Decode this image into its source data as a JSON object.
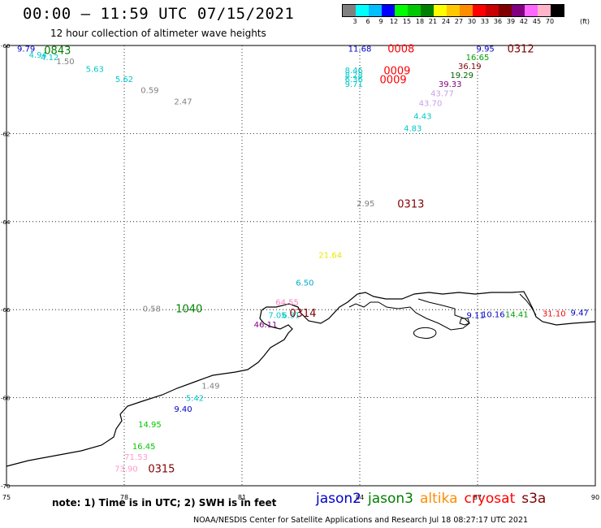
{
  "header": {
    "title": "00:00 – 11:59 UTC 07/15/2021",
    "subtitle": "12 hour collection of altimeter wave heights"
  },
  "colorbar": {
    "unit": "(ft)",
    "labels": [
      "3",
      "6",
      "9",
      "12",
      "15",
      "18",
      "21",
      "24",
      "27",
      "30",
      "33",
      "36",
      "39",
      "42",
      "45",
      "70"
    ],
    "colors": [
      "#808080",
      "#00ffff",
      "#00bfff",
      "#0000ff",
      "#00ff00",
      "#00c800",
      "#008000",
      "#ffff00",
      "#ffc800",
      "#ff8c00",
      "#ff0000",
      "#c80000",
      "#800000",
      "#800080",
      "#ff66ff",
      "#ffb4c8",
      "#000000"
    ]
  },
  "axes": {
    "lon_ticks": [
      "75",
      "78",
      "81",
      "84",
      "87",
      "90"
    ],
    "lat_ticks": [
      "-60",
      "-62",
      "-64",
      "-66",
      "-68",
      "-70"
    ]
  },
  "observations": [
    {
      "text": "9.79",
      "lon": 75.5,
      "lat": -60.06,
      "color": "#0000c8"
    },
    {
      "text": "4.94",
      "lon": 75.8,
      "lat": -60.2,
      "color": "#00c8c8"
    },
    {
      "text": "4.12",
      "lon": 76.1,
      "lat": -60.26,
      "color": "#00c8c8"
    },
    {
      "text": "1.50",
      "lon": 76.5,
      "lat": -60.35,
      "color": "#808080"
    },
    {
      "text": "5.63",
      "lon": 77.25,
      "lat": -60.53,
      "color": "#00c8c8"
    },
    {
      "text": "5.62",
      "lon": 78.0,
      "lat": -60.76,
      "color": "#00c8c8"
    },
    {
      "text": "0.59",
      "lon": 78.65,
      "lat": -61.01,
      "color": "#808080"
    },
    {
      "text": "2.47",
      "lon": 79.5,
      "lat": -61.26,
      "color": "#808080"
    },
    {
      "text": "11.68",
      "lon": 84.0,
      "lat": -60.06,
      "color": "#0000c8"
    },
    {
      "text": "8.46",
      "lon": 83.85,
      "lat": -60.55,
      "color": "#00c8c8"
    },
    {
      "text": "8.28",
      "lon": 83.85,
      "lat": -60.66,
      "color": "#00c8c8"
    },
    {
      "text": "6.36",
      "lon": 83.85,
      "lat": -60.76,
      "color": "#00c8c8"
    },
    {
      "text": "9.71",
      "lon": 83.85,
      "lat": -60.87,
      "color": "#00c8c8"
    },
    {
      "text": "9.95",
      "lon": 87.2,
      "lat": -60.06,
      "color": "#0000c8"
    },
    {
      "text": "16.65",
      "lon": 87.0,
      "lat": -60.26,
      "color": "#00a000"
    },
    {
      "text": "36.19",
      "lon": 86.8,
      "lat": -60.46,
      "color": "#800000"
    },
    {
      "text": "19.29",
      "lon": 86.6,
      "lat": -60.66,
      "color": "#006400"
    },
    {
      "text": "39.33",
      "lon": 86.3,
      "lat": -60.87,
      "color": "#800080"
    },
    {
      "text": "43.77",
      "lon": 86.1,
      "lat": -61.08,
      "color": "#c8a0e8"
    },
    {
      "text": "43.70",
      "lon": 85.8,
      "lat": -61.3,
      "color": "#c8a0e8"
    },
    {
      "text": "4.43",
      "lon": 85.6,
      "lat": -61.6,
      "color": "#00c8c8"
    },
    {
      "text": "4.83",
      "lon": 85.35,
      "lat": -61.87,
      "color": "#00c8c8"
    },
    {
      "text": "2.95",
      "lon": 84.15,
      "lat": -63.58,
      "color": "#808080"
    },
    {
      "text": "21.64",
      "lon": 83.25,
      "lat": -64.75,
      "color": "#e8e800"
    },
    {
      "text": "6.50",
      "lon": 82.6,
      "lat": -65.38,
      "color": "#00aacc"
    },
    {
      "text": "64.55",
      "lon": 82.15,
      "lat": -65.82,
      "color": "#ff80c0"
    },
    {
      "text": "7.05",
      "lon": 81.9,
      "lat": -66.12,
      "color": "#00c8c8"
    },
    {
      "text": "6.31",
      "lon": 82.25,
      "lat": -66.12,
      "color": "#00c8c8"
    },
    {
      "text": "46.11",
      "lon": 81.6,
      "lat": -66.33,
      "color": "#800080"
    },
    {
      "text": "0.58",
      "lon": 78.7,
      "lat": -65.97,
      "color": "#808080"
    },
    {
      "text": "9.11",
      "lon": 86.95,
      "lat": -66.12,
      "color": "#0000c8"
    },
    {
      "text": "10.16",
      "lon": 87.4,
      "lat": -66.1,
      "color": "#0000c8"
    },
    {
      "text": "14.41",
      "lon": 88.0,
      "lat": -66.1,
      "color": "#00a000"
    },
    {
      "text": "31.10",
      "lon": 88.95,
      "lat": -66.08,
      "color": "#ff0000"
    },
    {
      "text": "9.47",
      "lon": 89.6,
      "lat": -66.06,
      "color": "#0000c8"
    },
    {
      "text": "1.49",
      "lon": 80.2,
      "lat": -67.72,
      "color": "#808080"
    },
    {
      "text": "5.42",
      "lon": 79.8,
      "lat": -68.0,
      "color": "#00c8c8"
    },
    {
      "text": "9.40",
      "lon": 79.5,
      "lat": -68.25,
      "color": "#0000c8"
    },
    {
      "text": "14.95",
      "lon": 78.65,
      "lat": -68.6,
      "color": "#00c800"
    },
    {
      "text": "16.45",
      "lon": 78.5,
      "lat": -69.1,
      "color": "#00c800"
    },
    {
      "text": "71.53",
      "lon": 78.3,
      "lat": -69.34,
      "color": "#ff99cc"
    },
    {
      "text": "73.90",
      "lon": 78.05,
      "lat": -69.6,
      "color": "#ff99cc"
    }
  ],
  "times": [
    {
      "text": "0843",
      "lon": 76.3,
      "lat": -60.1,
      "color": "#008000"
    },
    {
      "text": "0008",
      "lon": 85.05,
      "lat": -60.06,
      "color": "#ff0000"
    },
    {
      "text": "0009",
      "lon": 84.95,
      "lat": -60.56,
      "color": "#ff0000"
    },
    {
      "text": "0009",
      "lon": 84.85,
      "lat": -60.77,
      "color": "#ff0000"
    },
    {
      "text": "0312",
      "lon": 88.1,
      "lat": -60.06,
      "color": "#800000"
    },
    {
      "text": "0313",
      "lon": 85.3,
      "lat": -63.59,
      "color": "#800000"
    },
    {
      "text": "1040",
      "lon": 79.65,
      "lat": -65.97,
      "color": "#008000"
    },
    {
      "text": "0314",
      "lon": 82.55,
      "lat": -66.07,
      "color": "#800000"
    },
    {
      "text": "0315",
      "lon": 78.95,
      "lat": -69.6,
      "color": "#800000"
    }
  ],
  "footer": {
    "note": "note:  1) Time is in UTC;  2) SWH is in feet",
    "credit": "NOAA/NESDIS Center for Satellite Applications and Research    Jul 18 08:27:17 UTC 2021"
  },
  "legend": [
    {
      "name": "jason2",
      "color": "#0000c8"
    },
    {
      "name": "jason3",
      "color": "#008000"
    },
    {
      "name": "altika",
      "color": "#ff8c00"
    },
    {
      "name": "cryosat",
      "color": "#ff0000"
    },
    {
      "name": "s3a",
      "color": "#800000"
    }
  ]
}
